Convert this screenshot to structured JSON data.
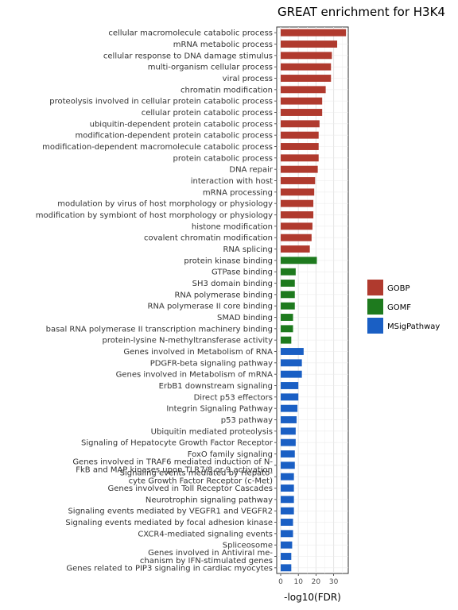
{
  "chart_data": {
    "type": "bar",
    "orientation": "horizontal",
    "title": "GREAT enrichment for H3K4",
    "xlabel": "-log10(FDR)",
    "ylabel": "",
    "xlim": [
      0,
      40
    ],
    "xticks": [
      0,
      10,
      20,
      30
    ],
    "grid": true,
    "legend_position": "right",
    "legend": [
      {
        "name": "GOBP",
        "color": "#b03a2e"
      },
      {
        "name": "GOMF",
        "color": "#1e7a1e"
      },
      {
        "name": "MSigPathway",
        "color": "#1a5fc4"
      }
    ],
    "categories": [
      "cellular macromolecule catabolic process",
      "mRNA metabolic process",
      "cellular response to DNA damage stimulus",
      "multi-organism cellular process",
      "viral process",
      "chromatin modification",
      "proteolysis involved in cellular protein catabolic process",
      "cellular protein catabolic process",
      "ubiquitin-dependent protein catabolic process",
      "modification-dependent protein catabolic process",
      "modification-dependent macromolecule catabolic process",
      "protein catabolic process",
      "DNA repair",
      "interaction with host",
      "mRNA processing",
      "modulation by virus of host morphology or physiology",
      "modification by symbiont of host morphology or physiology",
      "histone modification",
      "covalent chromatin modification",
      "RNA splicing",
      "protein kinase binding",
      "GTPase binding",
      "SH3 domain binding",
      "RNA polymerase binding",
      "RNA polymerase II core binding",
      "SMAD binding",
      "basal RNA polymerase II transcription machinery binding",
      "protein-lysine N-methyltransferase activity",
      "Genes involved in Metabolism of RNA",
      "PDGFR-beta signaling pathway",
      "Genes involved in Metabolism of mRNA",
      "ErbB1 downstream signaling",
      "Direct p53 effectors",
      "Integrin Signaling Pathway",
      "p53 pathway",
      "Ubiquitin mediated proteolysis",
      "Signaling of Hepatocyte Growth Factor Receptor",
      "FoxO family signaling",
      "Genes involved in TRAF6 mediated induction of N-FkB and MAP kinases upon TLR7/8 or 9 activation",
      "Signaling events mediated by Hepatocyte Growth Factor Receptor (c-Met)",
      "Genes involved in Toll Receptor Cascades",
      "Neurotrophin signaling pathway",
      "Signaling events mediated by VEGFR1 and VEGFR2",
      "Signaling events mediated by focal adhesion kinase",
      "CXCR4-mediated signaling events",
      "Spliceosome",
      "Genes involved in Antiviral mechanism by IFN-stimulated genes",
      "Genes related to PIP3 signaling in cardiac myocytes"
    ],
    "values": [
      37,
      32,
      29,
      28.5,
      28.5,
      25.5,
      23.5,
      23.5,
      22,
      21.5,
      21.5,
      21.5,
      21,
      19.5,
      19,
      18.5,
      18.5,
      18,
      17.5,
      16.5,
      20.5,
      8.5,
      8,
      8,
      8,
      7,
      7,
      6,
      13,
      12,
      12,
      10,
      10,
      9.5,
      9,
      8.5,
      8.5,
      8,
      8,
      7.5,
      7.5,
      7.5,
      7.5,
      7,
      7,
      6.5,
      6,
      6
    ],
    "groups": [
      "GOBP",
      "GOBP",
      "GOBP",
      "GOBP",
      "GOBP",
      "GOBP",
      "GOBP",
      "GOBP",
      "GOBP",
      "GOBP",
      "GOBP",
      "GOBP",
      "GOBP",
      "GOBP",
      "GOBP",
      "GOBP",
      "GOBP",
      "GOBP",
      "GOBP",
      "GOBP",
      "GOMF",
      "GOMF",
      "GOMF",
      "GOMF",
      "GOMF",
      "GOMF",
      "GOMF",
      "GOMF",
      "MSigPathway",
      "MSigPathway",
      "MSigPathway",
      "MSigPathway",
      "MSigPathway",
      "MSigPathway",
      "MSigPathway",
      "MSigPathway",
      "MSigPathway",
      "MSigPathway",
      "MSigPathway",
      "MSigPathway",
      "MSigPathway",
      "MSigPathway",
      "MSigPathway",
      "MSigPathway",
      "MSigPathway",
      "MSigPathway",
      "MSigPathway",
      "MSigPathway"
    ],
    "label_lines": [
      [
        "cellular macromolecule catabolic process"
      ],
      [
        "mRNA metabolic process"
      ],
      [
        "cellular response to DNA damage stimulus"
      ],
      [
        "multi-organism cellular process"
      ],
      [
        "viral process"
      ],
      [
        "chromatin modification"
      ],
      [
        "proteolysis involved in cellular protein catabolic process"
      ],
      [
        "cellular protein catabolic process"
      ],
      [
        "ubiquitin-dependent protein catabolic process"
      ],
      [
        "modification-dependent protein catabolic process"
      ],
      [
        "modification-dependent macromolecule catabolic process"
      ],
      [
        "protein catabolic process"
      ],
      [
        "DNA repair"
      ],
      [
        "interaction with host"
      ],
      [
        "mRNA processing"
      ],
      [
        "modulation by virus of host morphology or physiology"
      ],
      [
        "modification by symbiont of host morphology or physiology"
      ],
      [
        "histone modification"
      ],
      [
        "covalent chromatin modification"
      ],
      [
        "RNA splicing"
      ],
      [
        "protein kinase binding"
      ],
      [
        "GTPase binding"
      ],
      [
        "SH3 domain binding"
      ],
      [
        "RNA polymerase binding"
      ],
      [
        "RNA polymerase II core binding"
      ],
      [
        "SMAD binding"
      ],
      [
        "basal RNA polymerase II transcription machinery binding"
      ],
      [
        "protein-lysine N-methyltransferase activity"
      ],
      [
        "Genes involved in Metabolism of RNA"
      ],
      [
        "PDGFR-beta signaling pathway"
      ],
      [
        "Genes involved in Metabolism of mRNA"
      ],
      [
        "ErbB1 downstream signaling"
      ],
      [
        "Direct p53 effectors"
      ],
      [
        "Integrin Signaling Pathway"
      ],
      [
        "p53 pathway"
      ],
      [
        "Ubiquitin mediated proteolysis"
      ],
      [
        "Signaling of Hepatocyte Growth Factor Receptor"
      ],
      [
        "FoxO family signaling"
      ],
      [
        "Genes involved in TRAF6 mediated induction of N-",
        "FkB and MAP kinases upon TLR7/8 or 9 activation"
      ],
      [
        "Signaling events mediated by Hepato-",
        "cyte Growth Factor Receptor (c-Met)"
      ],
      [
        "Genes involved in Toll Receptor Cascades"
      ],
      [
        "Neurotrophin signaling pathway"
      ],
      [
        "Signaling events mediated by VEGFR1 and VEGFR2"
      ],
      [
        "Signaling events mediated by focal adhesion kinase"
      ],
      [
        "CXCR4-mediated signaling events"
      ],
      [
        "Spliceosome"
      ],
      [
        "Genes involved in Antiviral me-",
        "chanism by IFN-stimulated genes"
      ],
      [
        "Genes related to PIP3 signaling in cardiac myocytes"
      ]
    ]
  }
}
